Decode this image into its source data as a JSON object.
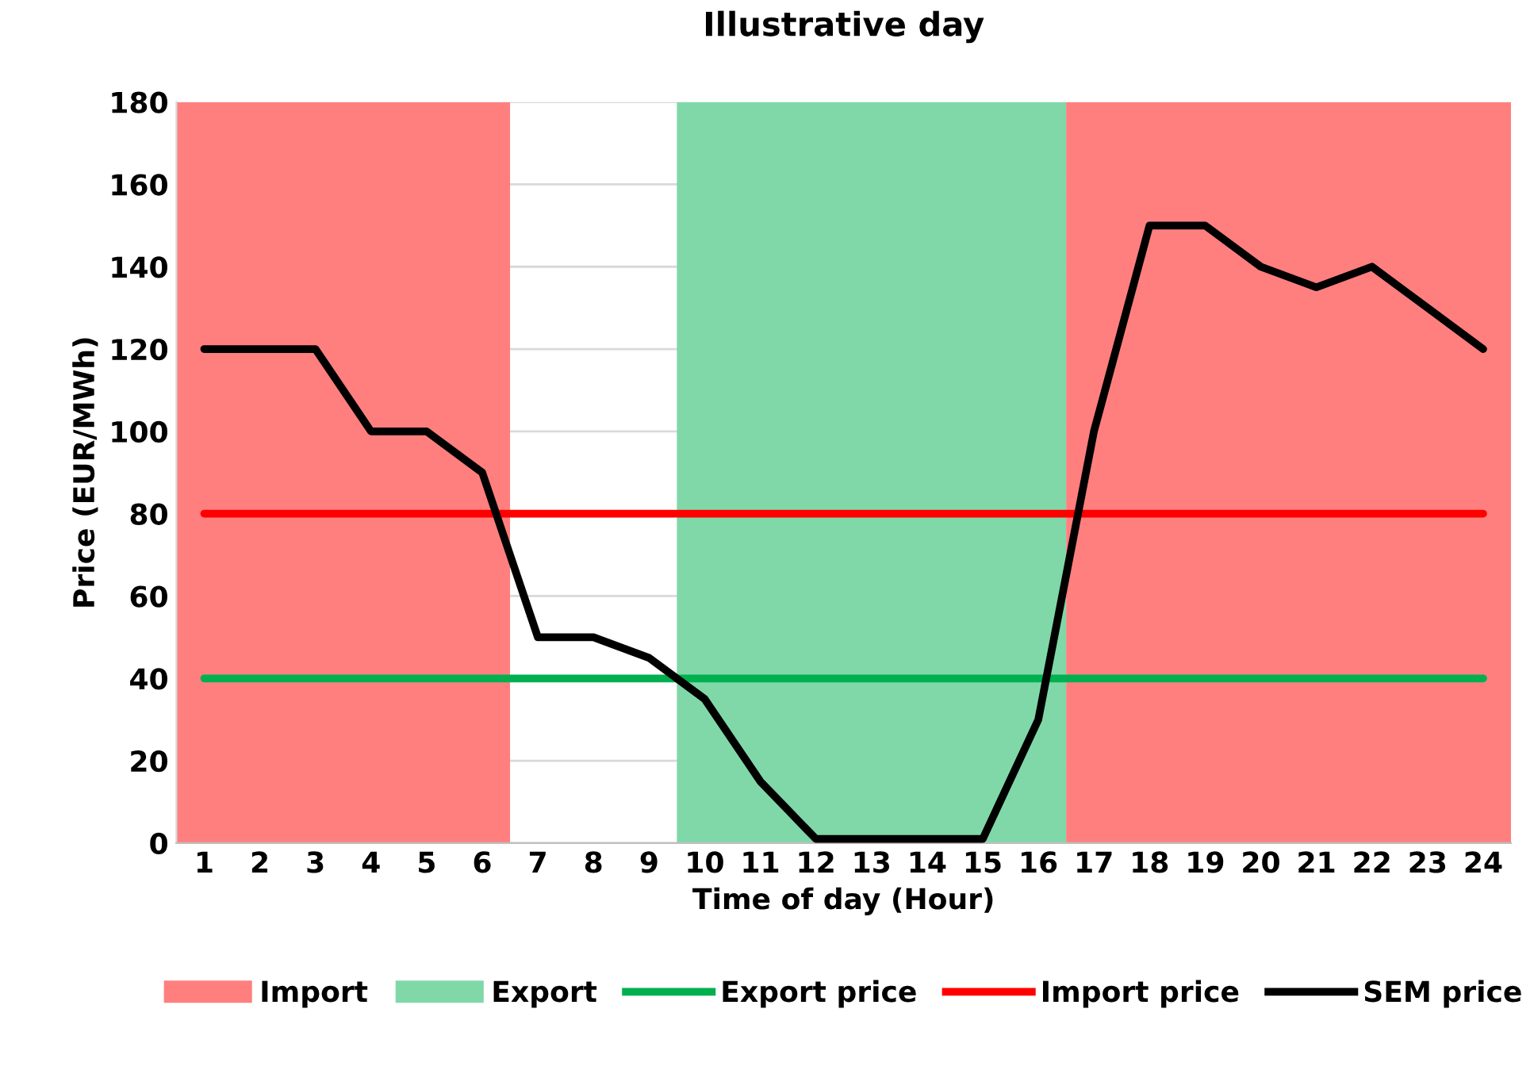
{
  "chart_data": {
    "type": "line",
    "title": "Illustrative day",
    "xlabel": "Time of day (Hour)",
    "ylabel": "Price (EUR/MWh)",
    "x": [
      1,
      2,
      3,
      4,
      5,
      6,
      7,
      8,
      9,
      10,
      11,
      12,
      13,
      14,
      15,
      16,
      17,
      18,
      19,
      20,
      21,
      22,
      23,
      24
    ],
    "xlim": [
      0.5,
      24.5
    ],
    "xticks": [
      1,
      2,
      3,
      4,
      5,
      6,
      7,
      8,
      9,
      10,
      11,
      12,
      13,
      14,
      15,
      16,
      17,
      18,
      19,
      20,
      21,
      22,
      23,
      24
    ],
    "bands": [
      {
        "axis": "x",
        "from": 0.5,
        "to": 6.5,
        "label": "Import",
        "color": "#ff7f7f"
      },
      {
        "axis": "x",
        "from": 9.5,
        "to": 16.5,
        "label": "Export",
        "color": "#80d8a8"
      },
      {
        "axis": "x",
        "from": 16.5,
        "to": 24.5,
        "color": "#ff7f7f"
      }
    ],
    "series": [
      {
        "name": "Export price",
        "color": "#00b050",
        "values": [
          40,
          40,
          40,
          40,
          40,
          40,
          40,
          40,
          40,
          40,
          40,
          40,
          40,
          40,
          40,
          40,
          40,
          40,
          40,
          40,
          40,
          40,
          40,
          40
        ]
      },
      {
        "name": "Import price",
        "color": "#ff0000",
        "values": [
          80,
          80,
          80,
          80,
          80,
          80,
          80,
          80,
          80,
          80,
          80,
          80,
          80,
          80,
          80,
          80,
          80,
          80,
          80,
          80,
          80,
          80,
          80,
          80
        ]
      },
      {
        "name": "SEM price",
        "color": "#000000",
        "values": [
          120,
          120,
          120,
          100,
          100,
          90,
          50,
          50,
          45,
          35,
          15,
          1,
          1,
          1,
          1,
          30,
          100,
          150,
          150,
          140,
          135,
          140,
          130,
          120
        ]
      }
    ],
    "ylim": [
      0,
      180
    ],
    "yticks": [
      0,
      20,
      40,
      60,
      80,
      100,
      120,
      140,
      160,
      180
    ],
    "grid": "y",
    "legend": "bottom",
    "marker": "none",
    "line_style": "solid"
  }
}
